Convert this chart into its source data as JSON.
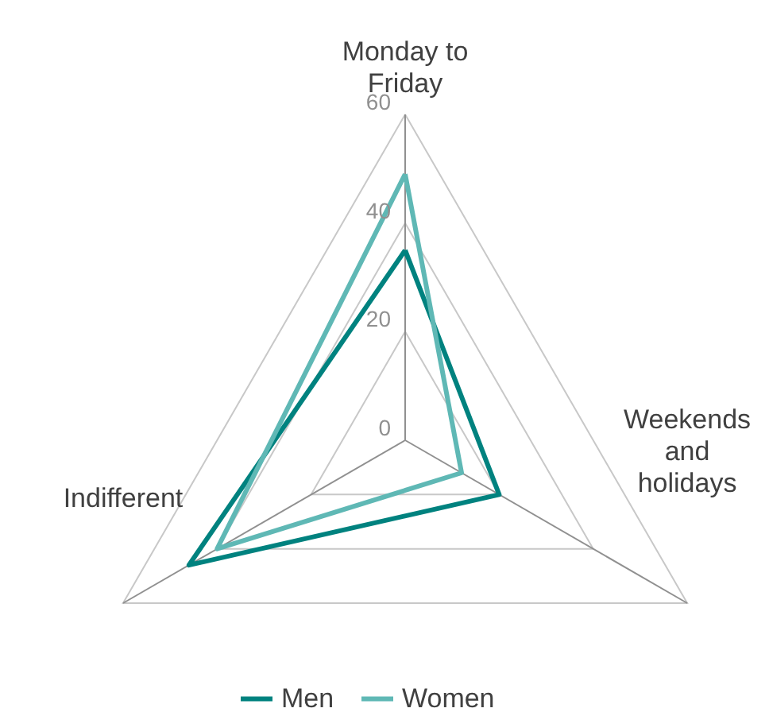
{
  "chart_data": {
    "type": "radar",
    "categories": [
      "Monday to Friday",
      "Weekends and holidays",
      "Indifferent"
    ],
    "series": [
      {
        "name": "Men",
        "color": "#00827f",
        "values": [
          35,
          20,
          46
        ]
      },
      {
        "name": "Women",
        "color": "#5fb8b5",
        "values": [
          49,
          12,
          40
        ]
      }
    ],
    "ylim": [
      0,
      60
    ],
    "yticks": [
      0,
      20,
      40,
      60
    ],
    "grid": true,
    "legend": "bottom",
    "line_style": "solid",
    "marker": "none"
  }
}
